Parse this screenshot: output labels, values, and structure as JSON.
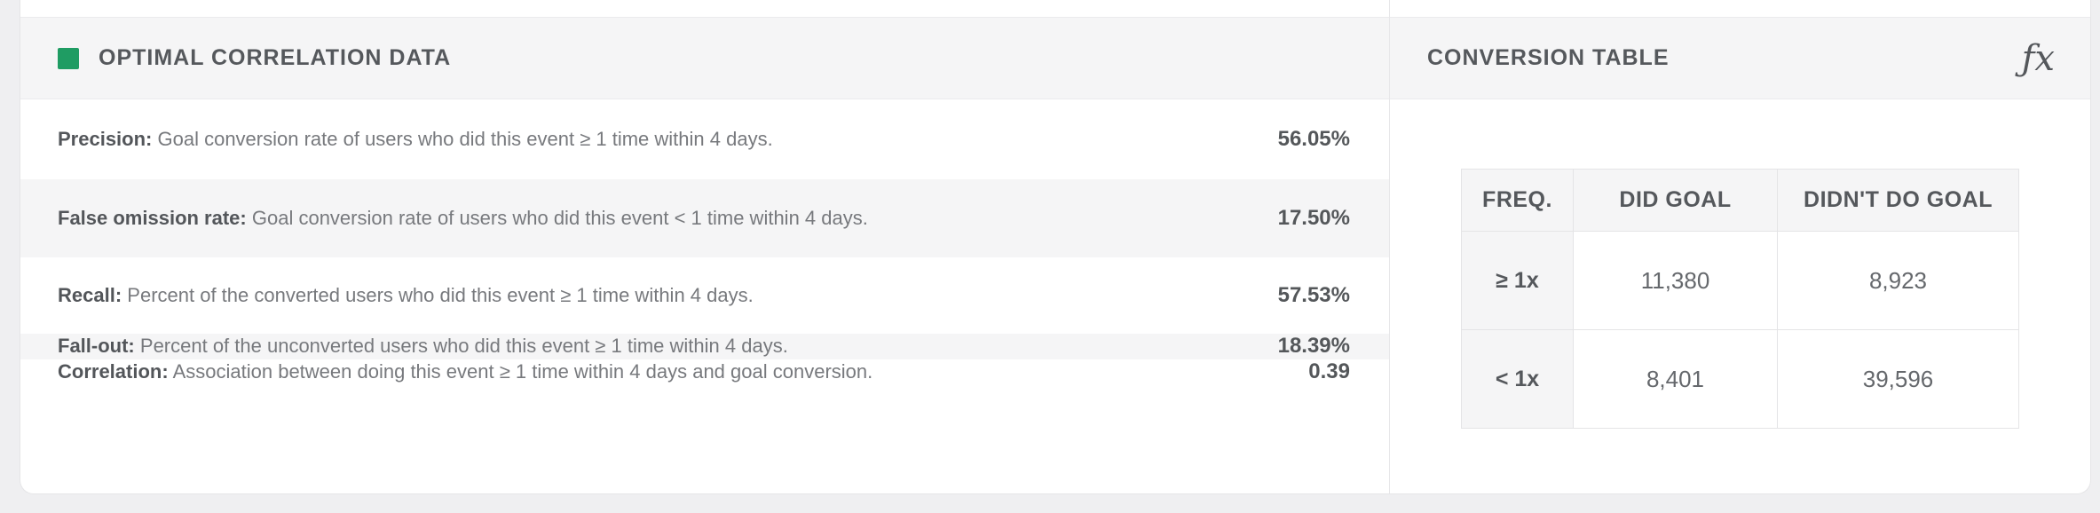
{
  "correlation_panel": {
    "title": "OPTIMAL CORRELATION DATA",
    "legend_color": "#1f9c63",
    "rows": [
      {
        "label": "Precision:",
        "description": "Goal conversion rate of users who did this event ≥ 1 time within 4 days.",
        "value": "56.05%"
      },
      {
        "label": "False omission rate:",
        "description": "Goal conversion rate of users who did this event < 1 time within 4 days.",
        "value": "17.50%"
      },
      {
        "label": "Recall:",
        "description": "Percent of the converted users who did this event ≥ 1 time within 4 days.",
        "value": "57.53%"
      },
      {
        "label": "Fall-out:",
        "description": "Percent of the unconverted users who did this event ≥ 1 time within 4 days.",
        "value": "18.39%"
      },
      {
        "label": "Correlation:",
        "description": "Association between doing this event ≥ 1 time within 4 days and goal conversion.",
        "value": "0.39"
      }
    ]
  },
  "conversion_panel": {
    "title": "CONVERSION TABLE",
    "formula_icon": "ƒx",
    "table": {
      "headers": [
        "FREQ.",
        "DID GOAL",
        "DIDN'T DO GOAL"
      ],
      "rows": [
        {
          "freq": "≥ 1x",
          "did_goal": "11,380",
          "didnt_do_goal": "8,923"
        },
        {
          "freq": "< 1x",
          "did_goal": "8,401",
          "didnt_do_goal": "39,596"
        }
      ]
    }
  }
}
